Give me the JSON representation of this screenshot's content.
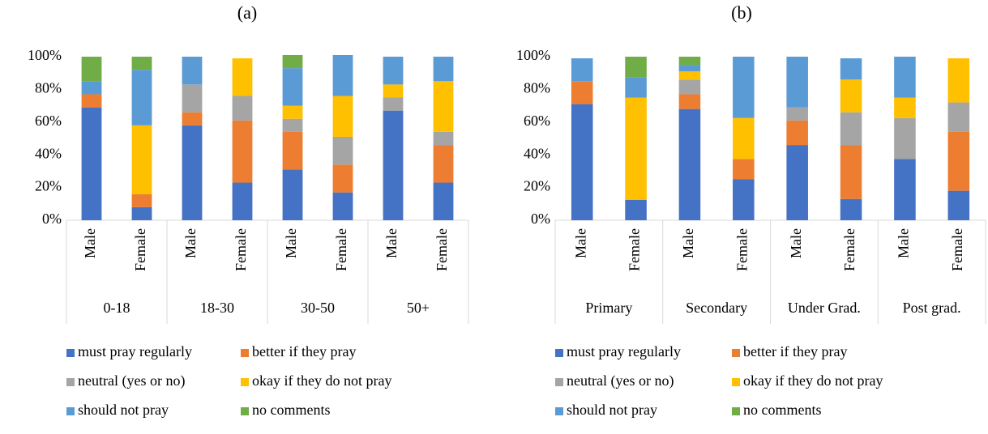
{
  "chart_data": [
    {
      "type": "stacked_bar",
      "title": "(a)",
      "groups": [
        {
          "label": "0-18",
          "categories": [
            "Male",
            "Female"
          ]
        },
        {
          "label": "18-30",
          "categories": [
            "Male",
            "Female"
          ]
        },
        {
          "label": "30-50",
          "categories": [
            "Male",
            "Female"
          ]
        },
        {
          "label": "50+",
          "categories": [
            "Male",
            "Female"
          ]
        }
      ],
      "series": [
        {
          "name": "must pray regularly",
          "color": "#4472c4",
          "values": [
            69,
            8,
            58,
            23,
            31,
            17,
            67,
            23
          ]
        },
        {
          "name": "better if they pray",
          "color": "#ed7d31",
          "values": [
            8,
            8,
            8,
            38,
            23,
            17,
            0,
            23
          ]
        },
        {
          "name": "neutral (yes or no)",
          "color": "#a5a5a5",
          "values": [
            0,
            0,
            17,
            15,
            8,
            17,
            8,
            8
          ]
        },
        {
          "name": "okay if they do not pray",
          "color": "#ffc000",
          "values": [
            0,
            42,
            0,
            23,
            8,
            25,
            8,
            31
          ]
        },
        {
          "name": "should not pray",
          "color": "#5b9bd5",
          "values": [
            8,
            34,
            17,
            0,
            23,
            25,
            17,
            15
          ]
        },
        {
          "name": "no comments",
          "color": "#70ad47",
          "values": [
            15,
            8,
            0,
            0,
            8,
            0,
            0,
            0
          ]
        }
      ],
      "ylim": [
        0,
        100
      ],
      "yticks": [
        {
          "value": 0,
          "label": "0%"
        },
        {
          "value": 20,
          "label": "20%"
        },
        {
          "value": 40,
          "label": "40%"
        },
        {
          "value": 60,
          "label": "60%"
        },
        {
          "value": 80,
          "label": "80%"
        },
        {
          "value": 100,
          "label": "100%"
        }
      ],
      "legend": "bottom"
    },
    {
      "type": "stacked_bar",
      "title": "(b)",
      "groups": [
        {
          "label": "Primary",
          "categories": [
            "Male",
            "Female"
          ]
        },
        {
          "label": "Secondary",
          "categories": [
            "Male",
            "Female"
          ]
        },
        {
          "label": "Under Grad.",
          "categories": [
            "Male",
            "Female"
          ]
        },
        {
          "label": "Post grad.",
          "categories": [
            "Male",
            "Female"
          ]
        }
      ],
      "series": [
        {
          "name": "must pray regularly",
          "color": "#4472c4",
          "values": [
            71,
            12.5,
            68,
            25,
            46,
            13,
            37.5,
            18
          ]
        },
        {
          "name": "better if they pray",
          "color": "#ed7d31",
          "values": [
            14,
            0,
            9,
            12.5,
            15,
            33,
            0,
            36
          ]
        },
        {
          "name": "neutral (yes or no)",
          "color": "#a5a5a5",
          "values": [
            0,
            0,
            9,
            0,
            8,
            20,
            25,
            18
          ]
        },
        {
          "name": "okay if they do not pray",
          "color": "#ffc000",
          "values": [
            0,
            62.5,
            5,
            25,
            0,
            20,
            12.5,
            27
          ]
        },
        {
          "name": "should not pray",
          "color": "#5b9bd5",
          "values": [
            14,
            12.5,
            4,
            37.5,
            31,
            13,
            25,
            0
          ]
        },
        {
          "name": "no comments",
          "color": "#70ad47",
          "values": [
            0,
            12.5,
            5,
            0,
            0,
            0,
            0,
            0
          ]
        }
      ],
      "ylim": [
        0,
        100
      ],
      "yticks": [
        {
          "value": 0,
          "label": "0%"
        },
        {
          "value": 20,
          "label": "20%"
        },
        {
          "value": 40,
          "label": "40%"
        },
        {
          "value": 60,
          "label": "60%"
        },
        {
          "value": 80,
          "label": "80%"
        },
        {
          "value": 100,
          "label": "100%"
        }
      ],
      "legend": "bottom"
    }
  ]
}
